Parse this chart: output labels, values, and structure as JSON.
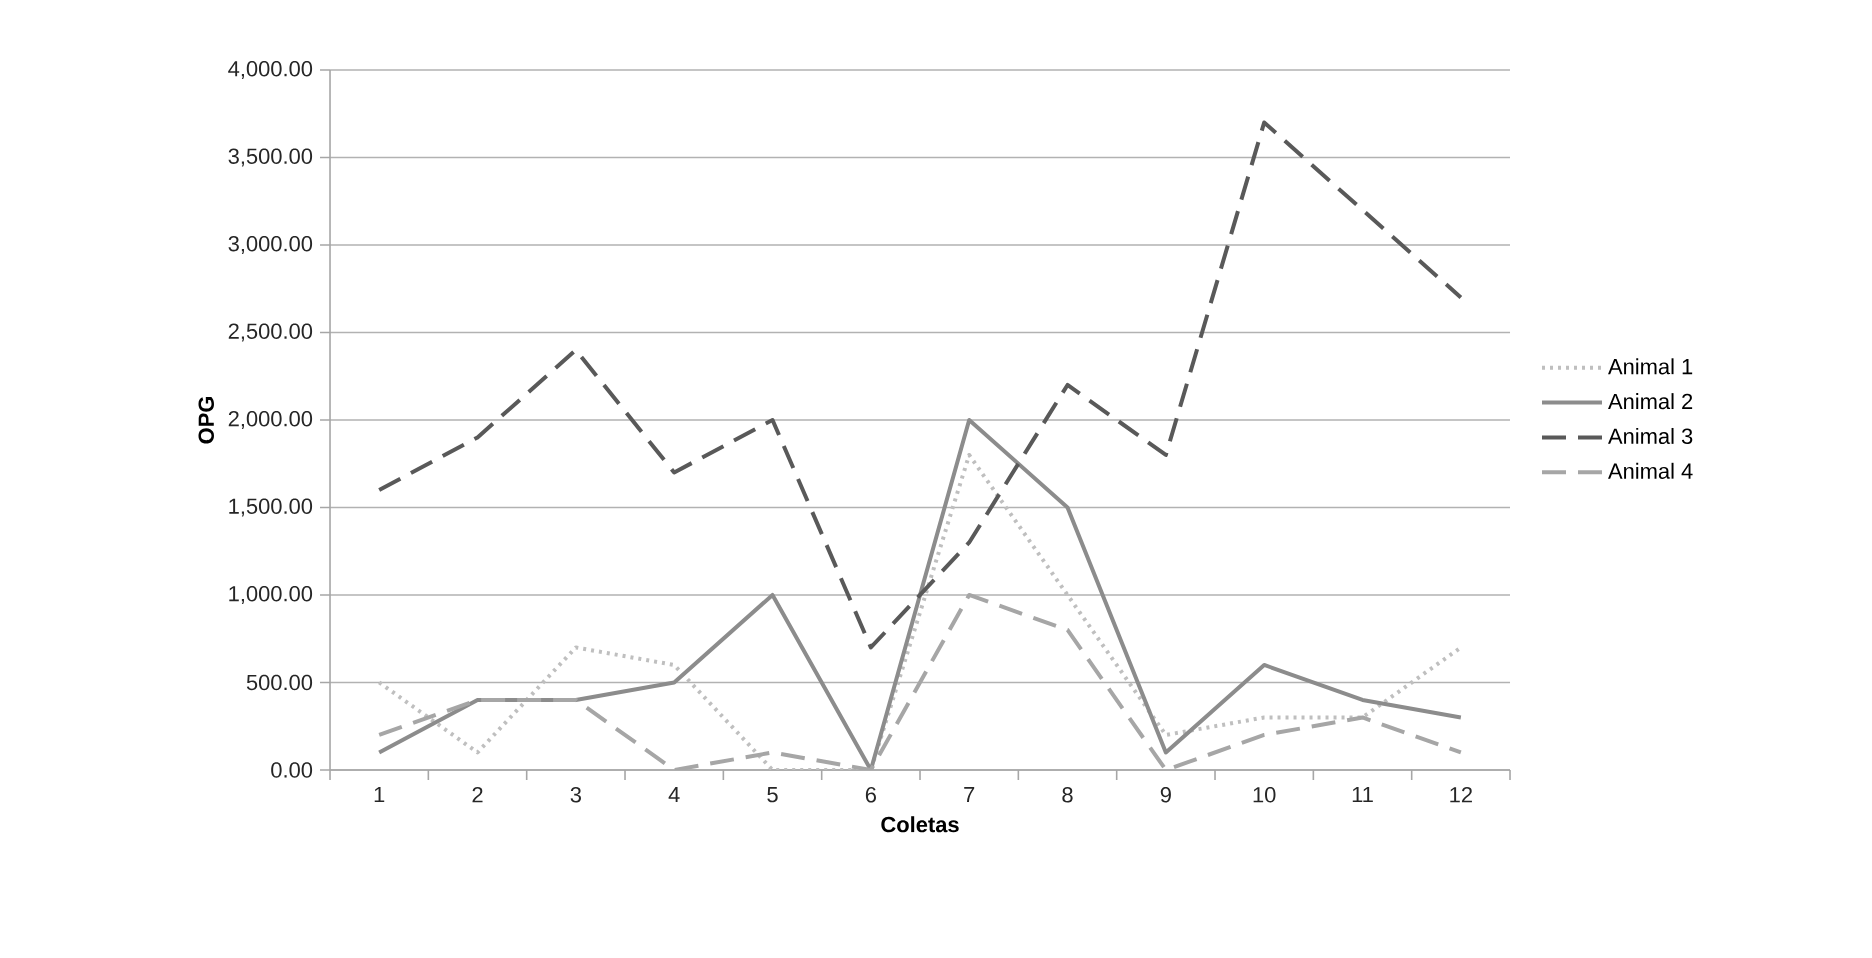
{
  "chart_data": {
    "type": "line",
    "xlabel": "Coletas",
    "ylabel": "OPG",
    "categories": [
      "1",
      "2",
      "3",
      "4",
      "5",
      "6",
      "7",
      "8",
      "9",
      "10",
      "11",
      "12"
    ],
    "series": [
      {
        "name": "Animal 1",
        "color": "#bfbfbf",
        "line_style": "dotted",
        "values": [
          500,
          100,
          700,
          600,
          0,
          0,
          1800,
          1000,
          200,
          300,
          300,
          700
        ]
      },
      {
        "name": "Animal 2",
        "color": "#8c8c8c",
        "line_style": "solid",
        "values": [
          100,
          400,
          400,
          500,
          1000,
          0,
          2000,
          1500,
          100,
          600,
          400,
          300
        ]
      },
      {
        "name": "Animal 3",
        "color": "#595959",
        "line_style": "dashed",
        "values": [
          1600,
          1900,
          2400,
          1700,
          2000,
          700,
          1300,
          2200,
          1800,
          3700,
          3200,
          2700
        ]
      },
      {
        "name": "Animal 4",
        "color": "#a6a6a6",
        "line_style": "dashed",
        "values": [
          200,
          400,
          400,
          0,
          100,
          0,
          1000,
          800,
          0,
          200,
          300,
          100
        ]
      }
    ],
    "ylim": [
      0,
      4000
    ],
    "yticks": [
      {
        "value": 0,
        "label": "0.00"
      },
      {
        "value": 500,
        "label": "500.00"
      },
      {
        "value": 1000,
        "label": "1,000.00"
      },
      {
        "value": 1500,
        "label": "1,500.00"
      },
      {
        "value": 2000,
        "label": "2,000.00"
      },
      {
        "value": 2500,
        "label": "2,500.00"
      },
      {
        "value": 3000,
        "label": "3,000.00"
      },
      {
        "value": 3500,
        "label": "3,500.00"
      },
      {
        "value": 4000,
        "label": "4,000.00"
      }
    ],
    "grid": "y",
    "legend": "right",
    "marker": "none"
  }
}
